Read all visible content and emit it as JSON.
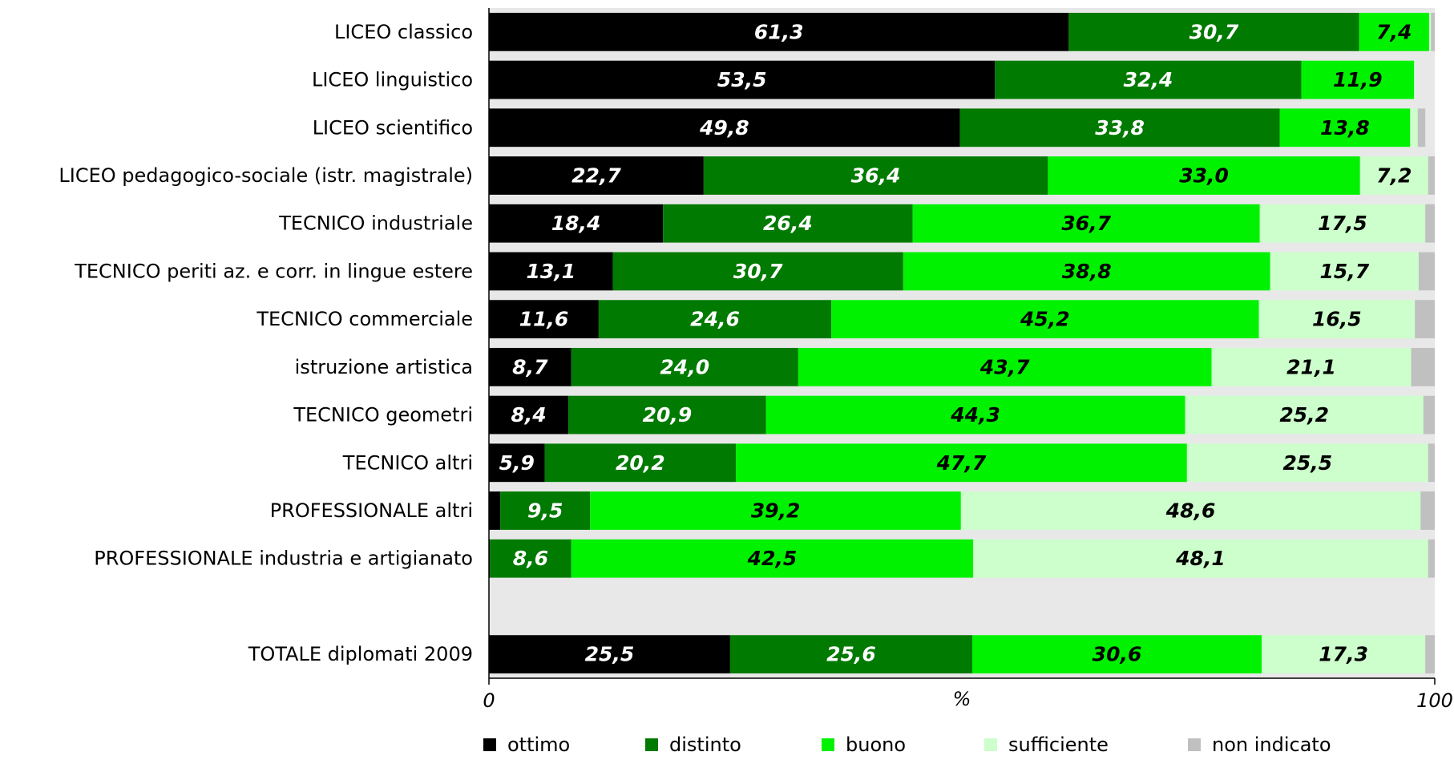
{
  "chart_data": {
    "type": "bar",
    "orientation": "horizontal",
    "stacked": true,
    "categories": [
      "LICEO classico",
      "LICEO linguistico",
      "LICEO scientifico",
      "LICEO pedagogico-sociale (istr. magistrale)",
      "TECNICO industriale",
      "TECNICO periti az. e corr. in lingue estere",
      "TECNICO commerciale",
      "istruzione artistica",
      "TECNICO geometri",
      "TECNICO altri",
      "PROFESSIONALE altri",
      "PROFESSIONALE industria e artigianato",
      "",
      "TOTALE diplomati 2009"
    ],
    "series": [
      {
        "name": "ottimo",
        "color": "#000000",
        "label_color": "#ffffff",
        "values": [
          61.3,
          53.5,
          49.8,
          22.7,
          18.4,
          13.1,
          11.6,
          8.7,
          8.4,
          5.9,
          1.2,
          0.1,
          null,
          25.5
        ],
        "labels": [
          "61,3",
          "53,5",
          "49,8",
          "22,7",
          "18,4",
          "13,1",
          "11,6",
          "8,7",
          "8,4",
          "5,9",
          "",
          "",
          "",
          "25,5"
        ]
      },
      {
        "name": "distinto",
        "color": "#007A00",
        "label_color": "#ffffff",
        "values": [
          30.7,
          32.4,
          33.8,
          36.4,
          26.4,
          30.7,
          24.6,
          24.0,
          20.9,
          20.2,
          9.5,
          8.6,
          null,
          25.6
        ],
        "labels": [
          "30,7",
          "32,4",
          "33,8",
          "36,4",
          "26,4",
          "30,7",
          "24,6",
          "24,0",
          "20,9",
          "20,2",
          "9,5",
          "8,6",
          "",
          "25,6"
        ]
      },
      {
        "name": "buono",
        "color": "#00F200",
        "label_color": "#000000",
        "values": [
          7.4,
          11.9,
          13.8,
          33.0,
          36.7,
          38.8,
          45.2,
          43.7,
          44.3,
          47.7,
          39.2,
          42.5,
          null,
          30.6
        ],
        "labels": [
          "7,4",
          "11,9",
          "13,8",
          "33,0",
          "36,7",
          "38,8",
          "45,2",
          "43,7",
          "44,3",
          "47,7",
          "39,2",
          "42,5",
          "",
          "30,6"
        ]
      },
      {
        "name": "sufficiente",
        "color": "#CCFFCC",
        "label_color": "#000000",
        "values": [
          0.2,
          0.2,
          0.8,
          7.2,
          17.5,
          15.7,
          16.5,
          21.1,
          25.2,
          25.5,
          48.6,
          48.1,
          null,
          17.3
        ],
        "labels": [
          "",
          "",
          "",
          "7,2",
          "17,5",
          "15,7",
          "16,5",
          "21,1",
          "25,2",
          "25,5",
          "48,6",
          "48,1",
          "",
          "17,3"
        ]
      },
      {
        "name": "non indicato",
        "color": "#C0C0C0",
        "label_color": "#000000",
        "values": [
          0.4,
          0.0,
          0.8,
          0.7,
          1.0,
          1.7,
          2.1,
          2.5,
          1.2,
          0.7,
          1.5,
          0.7,
          null,
          1.0
        ],
        "labels": [
          "",
          "",
          "",
          "",
          "",
          "",
          "",
          "",
          "",
          "",
          "",
          "",
          "",
          ""
        ]
      }
    ],
    "xlim": [
      0,
      100
    ],
    "x_ticks": [
      "0",
      "100"
    ],
    "xlabel": "%",
    "plot_background": "#E8E8E8",
    "legend_position": "bottom"
  }
}
